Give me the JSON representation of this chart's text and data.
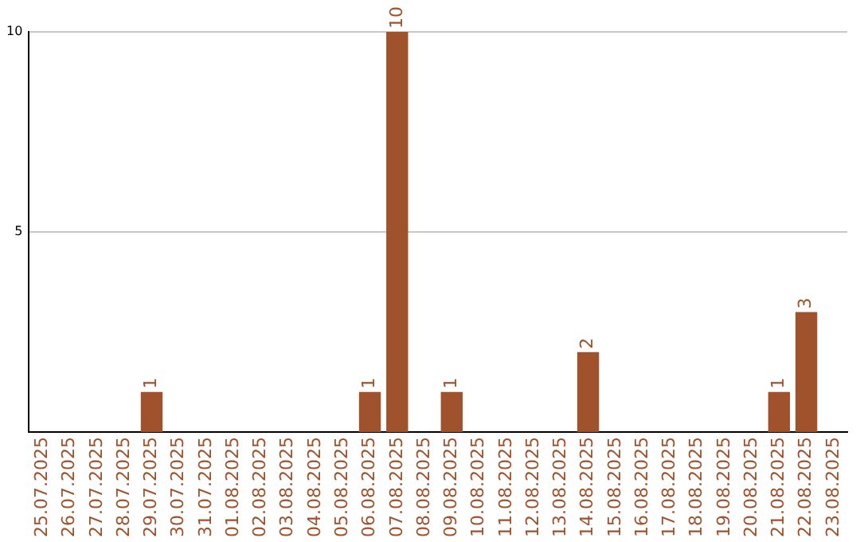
{
  "chart_data": {
    "type": "bar",
    "categories": [
      "25.07.2025",
      "26.07.2025",
      "27.07.2025",
      "28.07.2025",
      "29.07.2025",
      "30.07.2025",
      "31.07.2025",
      "01.08.2025",
      "02.08.2025",
      "03.08.2025",
      "04.08.2025",
      "05.08.2025",
      "06.08.2025",
      "07.08.2025",
      "08.08.2025",
      "09.08.2025",
      "10.08.2025",
      "11.08.2025",
      "12.08.2025",
      "13.08.2025",
      "14.08.2025",
      "15.08.2025",
      "16.08.2025",
      "17.08.2025",
      "18.08.2025",
      "19.08.2025",
      "20.08.2025",
      "21.08.2025",
      "22.08.2025",
      "23.08.2025"
    ],
    "values": [
      0,
      0,
      0,
      0,
      1,
      0,
      0,
      0,
      0,
      0,
      0,
      0,
      1,
      10,
      0,
      1,
      0,
      0,
      0,
      0,
      2,
      0,
      0,
      0,
      0,
      0,
      0,
      1,
      3,
      0
    ],
    "value_labels": [
      null,
      null,
      null,
      null,
      "1",
      null,
      null,
      null,
      null,
      null,
      null,
      null,
      "1",
      "10",
      null,
      "1",
      null,
      null,
      null,
      null,
      "2",
      null,
      null,
      null,
      null,
      null,
      null,
      "1",
      "3",
      null
    ],
    "color": "#a0522d",
    "ylim": [
      0,
      10
    ],
    "yticks": [
      5,
      10
    ],
    "grid": "y",
    "legend": false
  }
}
